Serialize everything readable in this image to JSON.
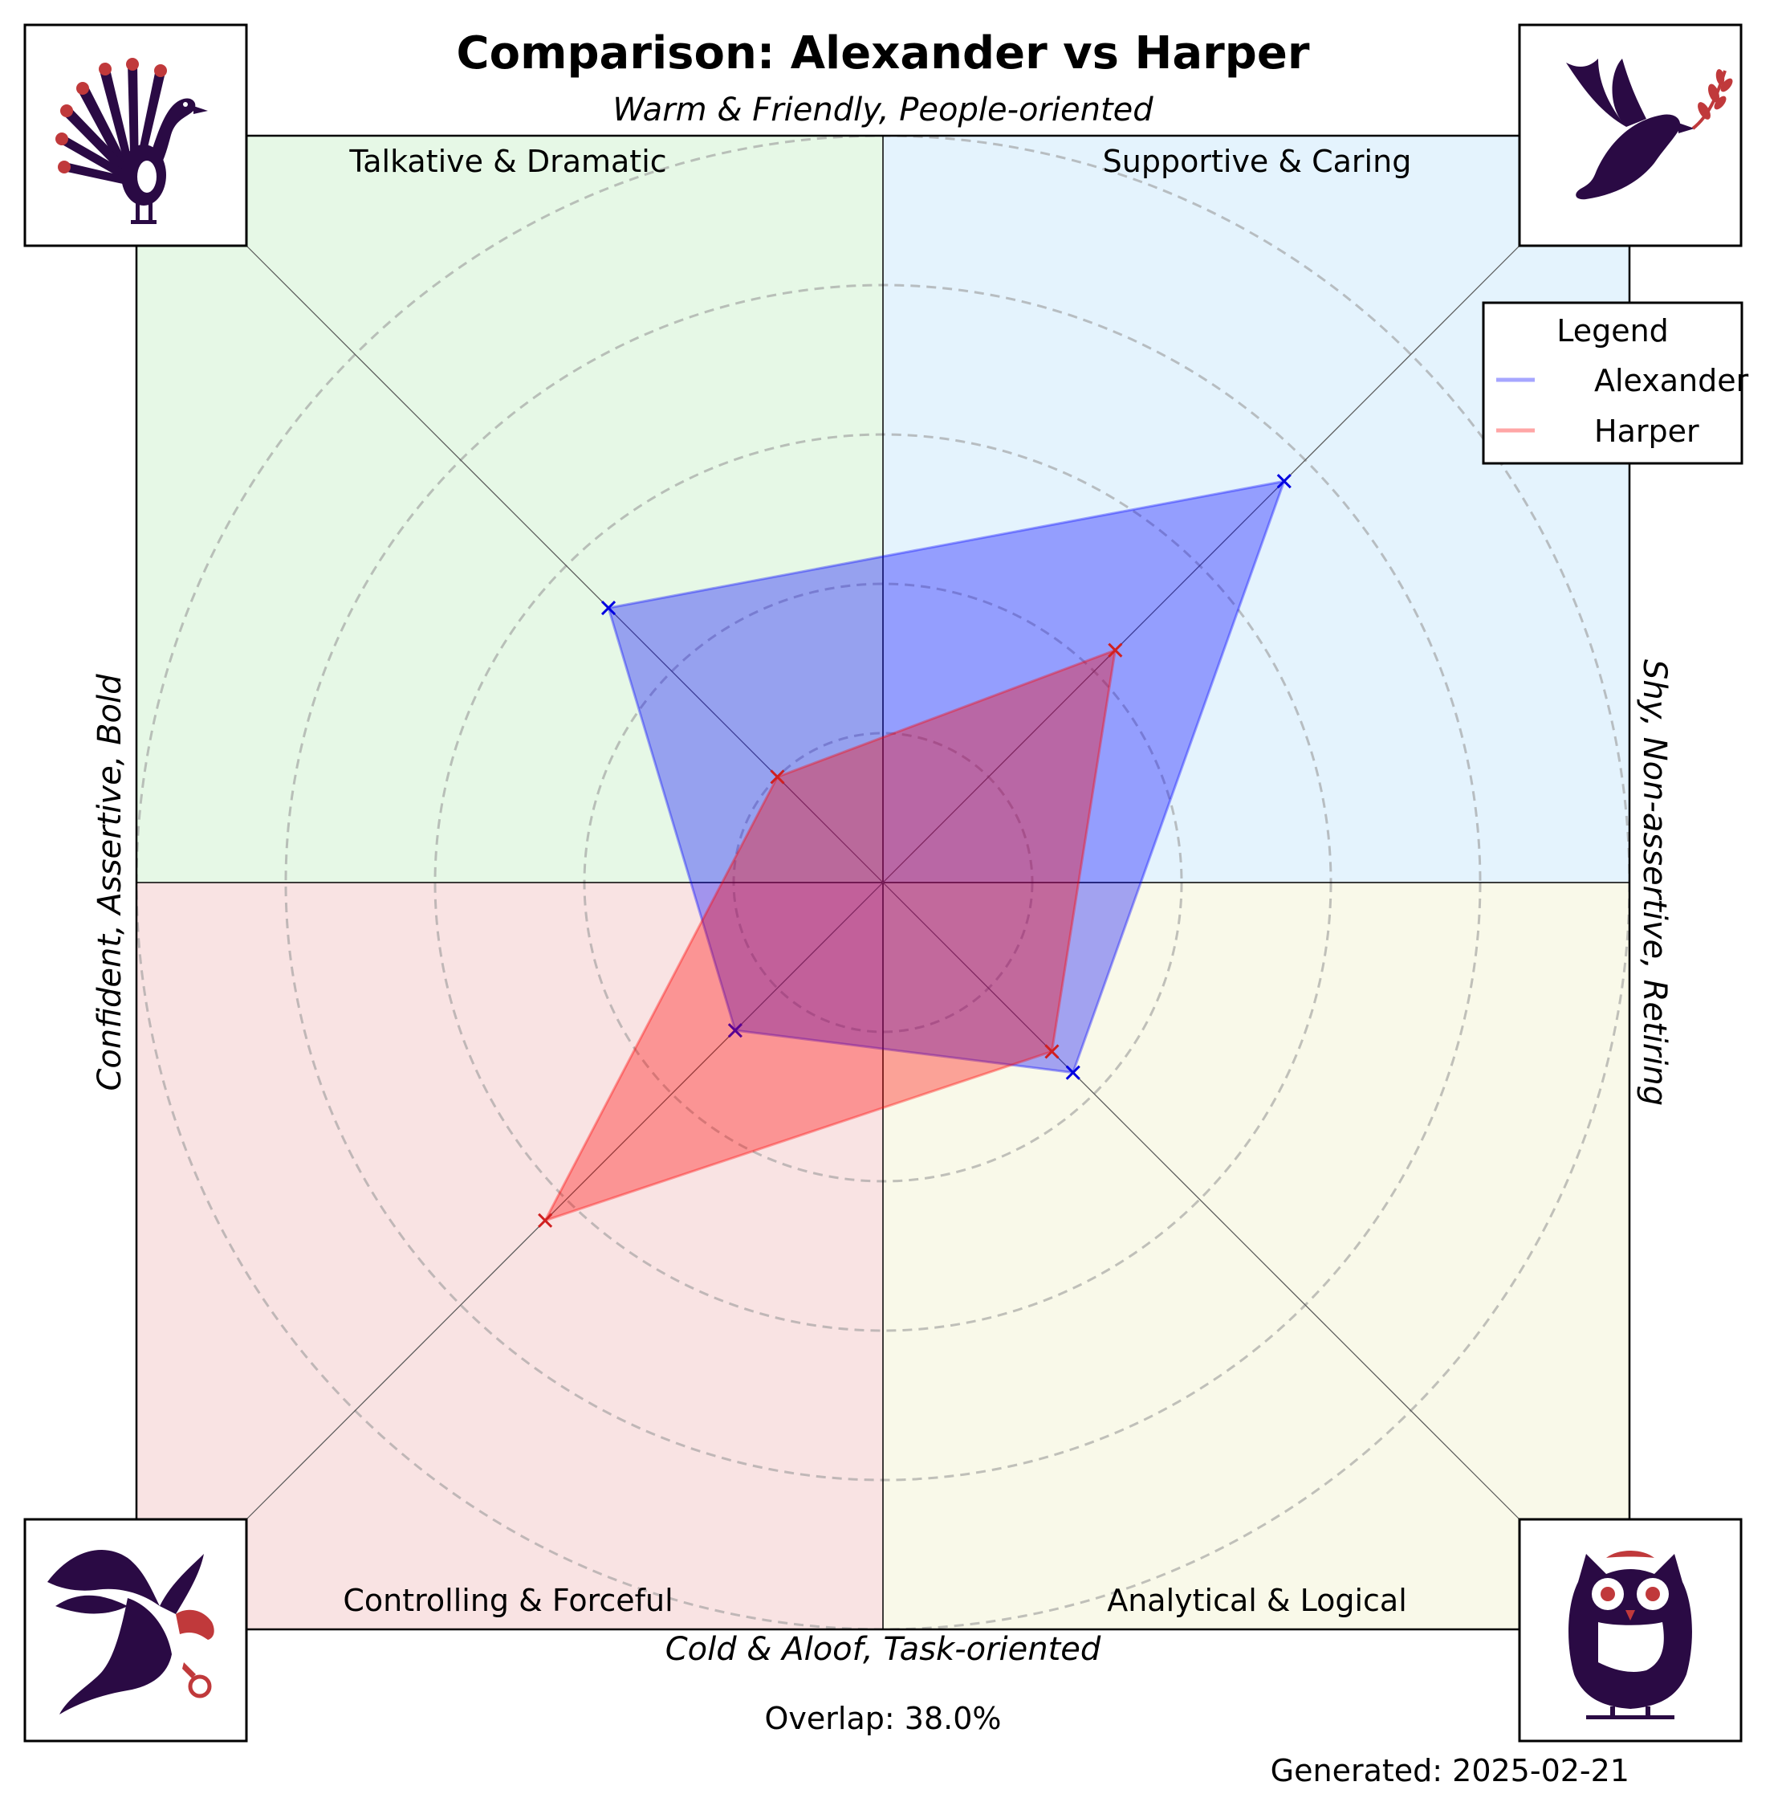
{
  "title": "Comparison: Alexander vs Harper",
  "axis_labels": {
    "top": "Warm & Friendly, People-oriented",
    "bottom": "Cold & Aloof, Task-oriented",
    "left": "Confident, Assertive, Bold",
    "right": "Shy, Non-assertive, Retiring"
  },
  "footer": {
    "overlap": "Overlap: 38.0%",
    "generated": "Generated: 2025-02-21"
  },
  "icons": {
    "top_left": "peacock-icon",
    "top_right": "dove-icon",
    "bottom_left": "eagle-icon",
    "bottom_right": "owl-icon"
  },
  "colors": {
    "quadrant_top_left": "#e6f8e6",
    "quadrant_top_right": "#e4f3fd",
    "quadrant_bottom_left": "#f9e3e3",
    "quadrant_bottom_right": "#f9f9e9",
    "alexander": "#0000ff",
    "harper": "#ff0000",
    "icon_dark": "#2a0a44",
    "icon_accent": "#c0393b"
  },
  "chart_data": {
    "type": "radar",
    "axes": [
      "Supportive & Caring",
      "Talkative & Dramatic",
      "Controlling & Forceful",
      "Analytical & Logical"
    ],
    "rlim": [
      0,
      5
    ],
    "grid": true,
    "legend": {
      "title": "Legend",
      "placement": "top-right",
      "entries": [
        "Alexander",
        "Harper"
      ]
    },
    "series": [
      {
        "name": "Alexander",
        "values": [
          3.8,
          2.6,
          1.4,
          1.8
        ]
      },
      {
        "name": "Harper",
        "values": [
          2.2,
          1.0,
          3.2,
          1.6
        ]
      }
    ]
  }
}
